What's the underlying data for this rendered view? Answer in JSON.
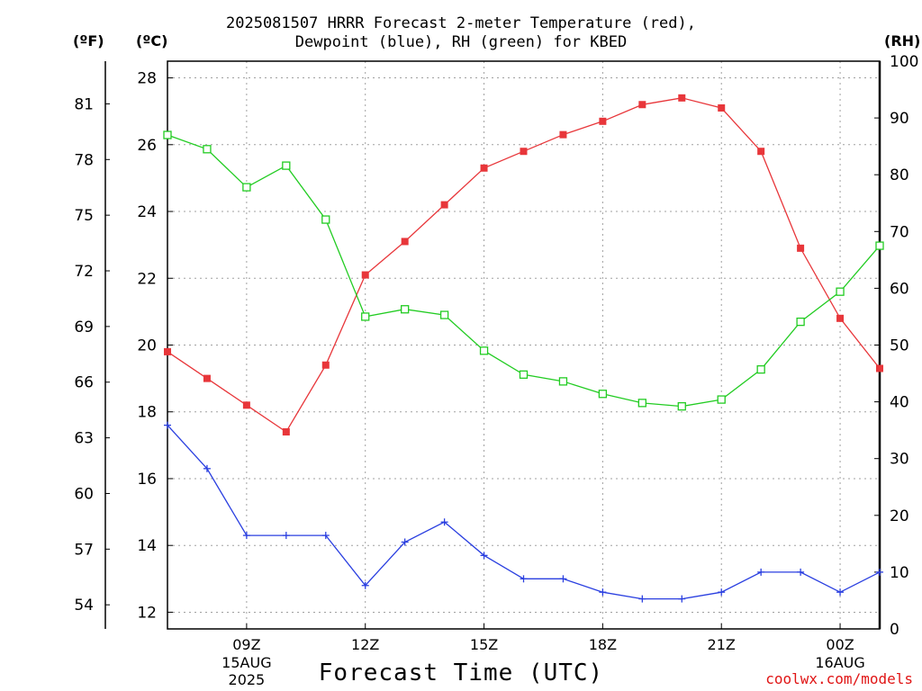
{
  "title_lines": [
    "2025081507 HRRR Forecast 2-meter Temperature (red),",
    "Dewpoint (blue), RH (green) for KBED"
  ],
  "units": {
    "fahrenheit": "(ºF)",
    "celsius": "(ºC)",
    "rh": "(RH)"
  },
  "xlabel": "Forecast Time (UTC)",
  "credit": "coolwx.com/models",
  "colors": {
    "temperature": "#e8363a",
    "dewpoint": "#2a3fe0",
    "rh": "#22cc22",
    "grid": "#a0a0a0"
  },
  "chart_data": {
    "type": "line",
    "title": "2025081507 HRRR Forecast 2-meter Temperature (red), Dewpoint (blue), RH (green) for KBED",
    "xlabel": "Forecast Time (UTC)",
    "x": [
      "07Z",
      "08Z",
      "09Z",
      "10Z",
      "11Z",
      "12Z",
      "13Z",
      "14Z",
      "15Z",
      "16Z",
      "17Z",
      "18Z",
      "19Z",
      "20Z",
      "21Z",
      "22Z",
      "23Z",
      "00Z",
      "01Z"
    ],
    "x_ticks": [
      {
        "x": "09Z",
        "label": "09Z",
        "sub": [
          "15AUG",
          "2025"
        ]
      },
      {
        "x": "12Z",
        "label": "12Z",
        "sub": []
      },
      {
        "x": "15Z",
        "label": "15Z",
        "sub": []
      },
      {
        "x": "18Z",
        "label": "18Z",
        "sub": []
      },
      {
        "x": "21Z",
        "label": "21Z",
        "sub": []
      },
      {
        "x": "00Z",
        "label": "00Z",
        "sub": [
          "16AUG"
        ]
      }
    ],
    "y_left_celsius": {
      "range": [
        11.5,
        28.5
      ],
      "ticks": [
        12,
        14,
        16,
        18,
        20,
        22,
        24,
        26,
        28
      ]
    },
    "y_left_fahrenheit": {
      "ticks": [
        54,
        57,
        60,
        63,
        66,
        69,
        72,
        75,
        78,
        81
      ]
    },
    "y_right_rh": {
      "range": [
        0,
        100
      ],
      "ticks": [
        0,
        10,
        20,
        30,
        40,
        50,
        60,
        70,
        80,
        90,
        100
      ]
    },
    "grid": true,
    "series": [
      {
        "name": "Temperature",
        "axis": "celsius",
        "marker": "filled-square",
        "color": "#e8363a",
        "values": [
          19.8,
          19.0,
          18.2,
          17.4,
          19.4,
          22.1,
          23.1,
          24.2,
          25.3,
          25.8,
          26.3,
          26.7,
          27.2,
          27.4,
          27.1,
          25.8,
          22.9,
          20.8,
          19.3
        ]
      },
      {
        "name": "Dewpoint",
        "axis": "celsius",
        "marker": "plus",
        "color": "#2a3fe0",
        "values": [
          17.6,
          16.3,
          14.3,
          14.3,
          14.3,
          12.8,
          14.1,
          14.7,
          13.7,
          13.0,
          13.0,
          12.6,
          12.4,
          12.4,
          12.6,
          13.2,
          13.2,
          12.6,
          13.2
        ]
      },
      {
        "name": "RH",
        "axis": "rh",
        "marker": "open-square",
        "color": "#22cc22",
        "values": [
          87.0,
          84.5,
          77.8,
          81.6,
          72.1,
          55.0,
          56.3,
          55.3,
          49.0,
          44.8,
          43.6,
          41.4,
          39.8,
          39.2,
          40.4,
          45.7,
          54.1,
          59.4,
          67.5
        ]
      }
    ]
  }
}
